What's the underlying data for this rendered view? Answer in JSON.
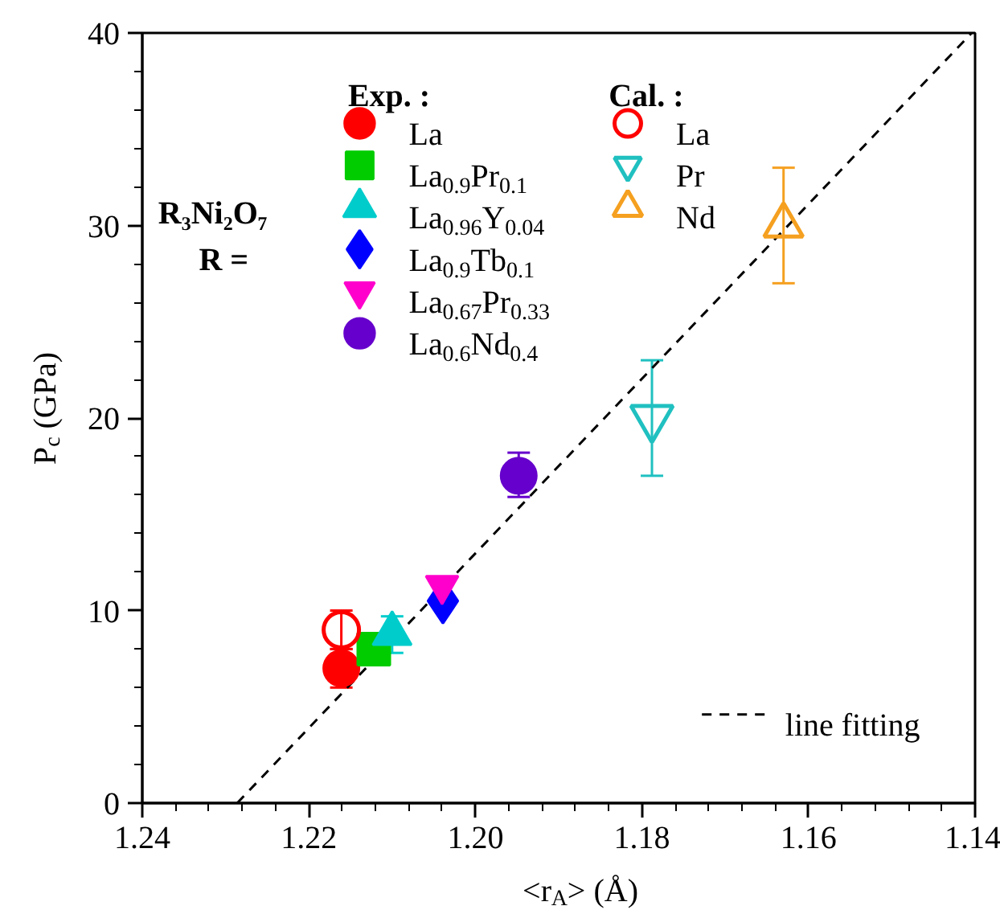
{
  "chart_data": {
    "type": "scatter",
    "xlabel": "<r$_{A}$> (Å)",
    "ylabel": "P$_{c}$ (GPa)",
    "xlim": [
      1.24,
      1.14
    ],
    "xticks": [
      1.24,
      1.22,
      {
        "value": 1.2,
        "label": "1.20"
      },
      1.18,
      1.16,
      1.14
    ],
    "ylim": [
      0,
      40
    ],
    "yticks": [
      0,
      10,
      20,
      30,
      40
    ],
    "grid": false,
    "legend": "right",
    "annotations": [
      "R₃Ni₂O₇",
      "R =",
      "Exp. :",
      "Cal. :"
    ],
    "series": [
      {
        "name": "line fitting",
        "type": "line",
        "color": "#000000",
        "line_style": "dashed",
        "x": [
          1.2286,
          1.1404
        ],
        "values": [
          0,
          40
        ]
      },
      {
        "name": "La",
        "color": "#ff0000",
        "marker": "circle",
        "x": [
          1.2161
        ],
        "values": [
          7
        ],
        "errors": [
          1
        ]
      },
      {
        "name": "La$_{0.9}$Pr$_{0.1}$",
        "color": "#00cc00",
        "marker": "square",
        "x": [
          1.2122
        ],
        "values": [
          8
        ]
      },
      {
        "name": "La$_{0.96}$Y$_{0.04}$",
        "color": "#00cccc",
        "marker": "triangle",
        "x": [
          1.21
        ],
        "values": [
          8.8
        ],
        "errors": [
          [
            7.8,
            9.7
          ]
        ]
      },
      {
        "name": "La$_{0.9}$Tb$_{0.1}$",
        "color": "#0000ff",
        "marker": "diamond",
        "x": [
          1.2039
        ],
        "values": [
          10.5
        ]
      },
      {
        "name": "La$_{0.67}$Pr$_{0.33}$",
        "color": "#ff00cc",
        "x": [
          1.204
        ],
        "values": [
          11.3
        ]
      },
      {
        "name": "La$_{0.6}$Nd$_{0.4}$",
        "color": "#6600cc",
        "marker": "circle",
        "x": [
          1.1948
        ],
        "values": [
          17
        ],
        "errors": [
          [
            15.9,
            18.2
          ]
        ]
      },
      {
        "name": "La",
        "color": "#ff0000",
        "marker": "circle",
        "x": [
          1.2161
        ],
        "values": [
          9
        ],
        "errors": [
          1
        ]
      },
      {
        "name": "Pr",
        "color": "#20c0c0",
        "x": [
          1.1788
        ],
        "values": [
          20
        ],
        "errors": [
          [
            17,
            23
          ]
        ]
      },
      {
        "name": "Nd",
        "color": "#f5a020",
        "marker": "triangle",
        "x": [
          1.163
        ],
        "values": [
          30
        ],
        "errors": [
          [
            27,
            33
          ]
        ]
      }
    ]
  }
}
